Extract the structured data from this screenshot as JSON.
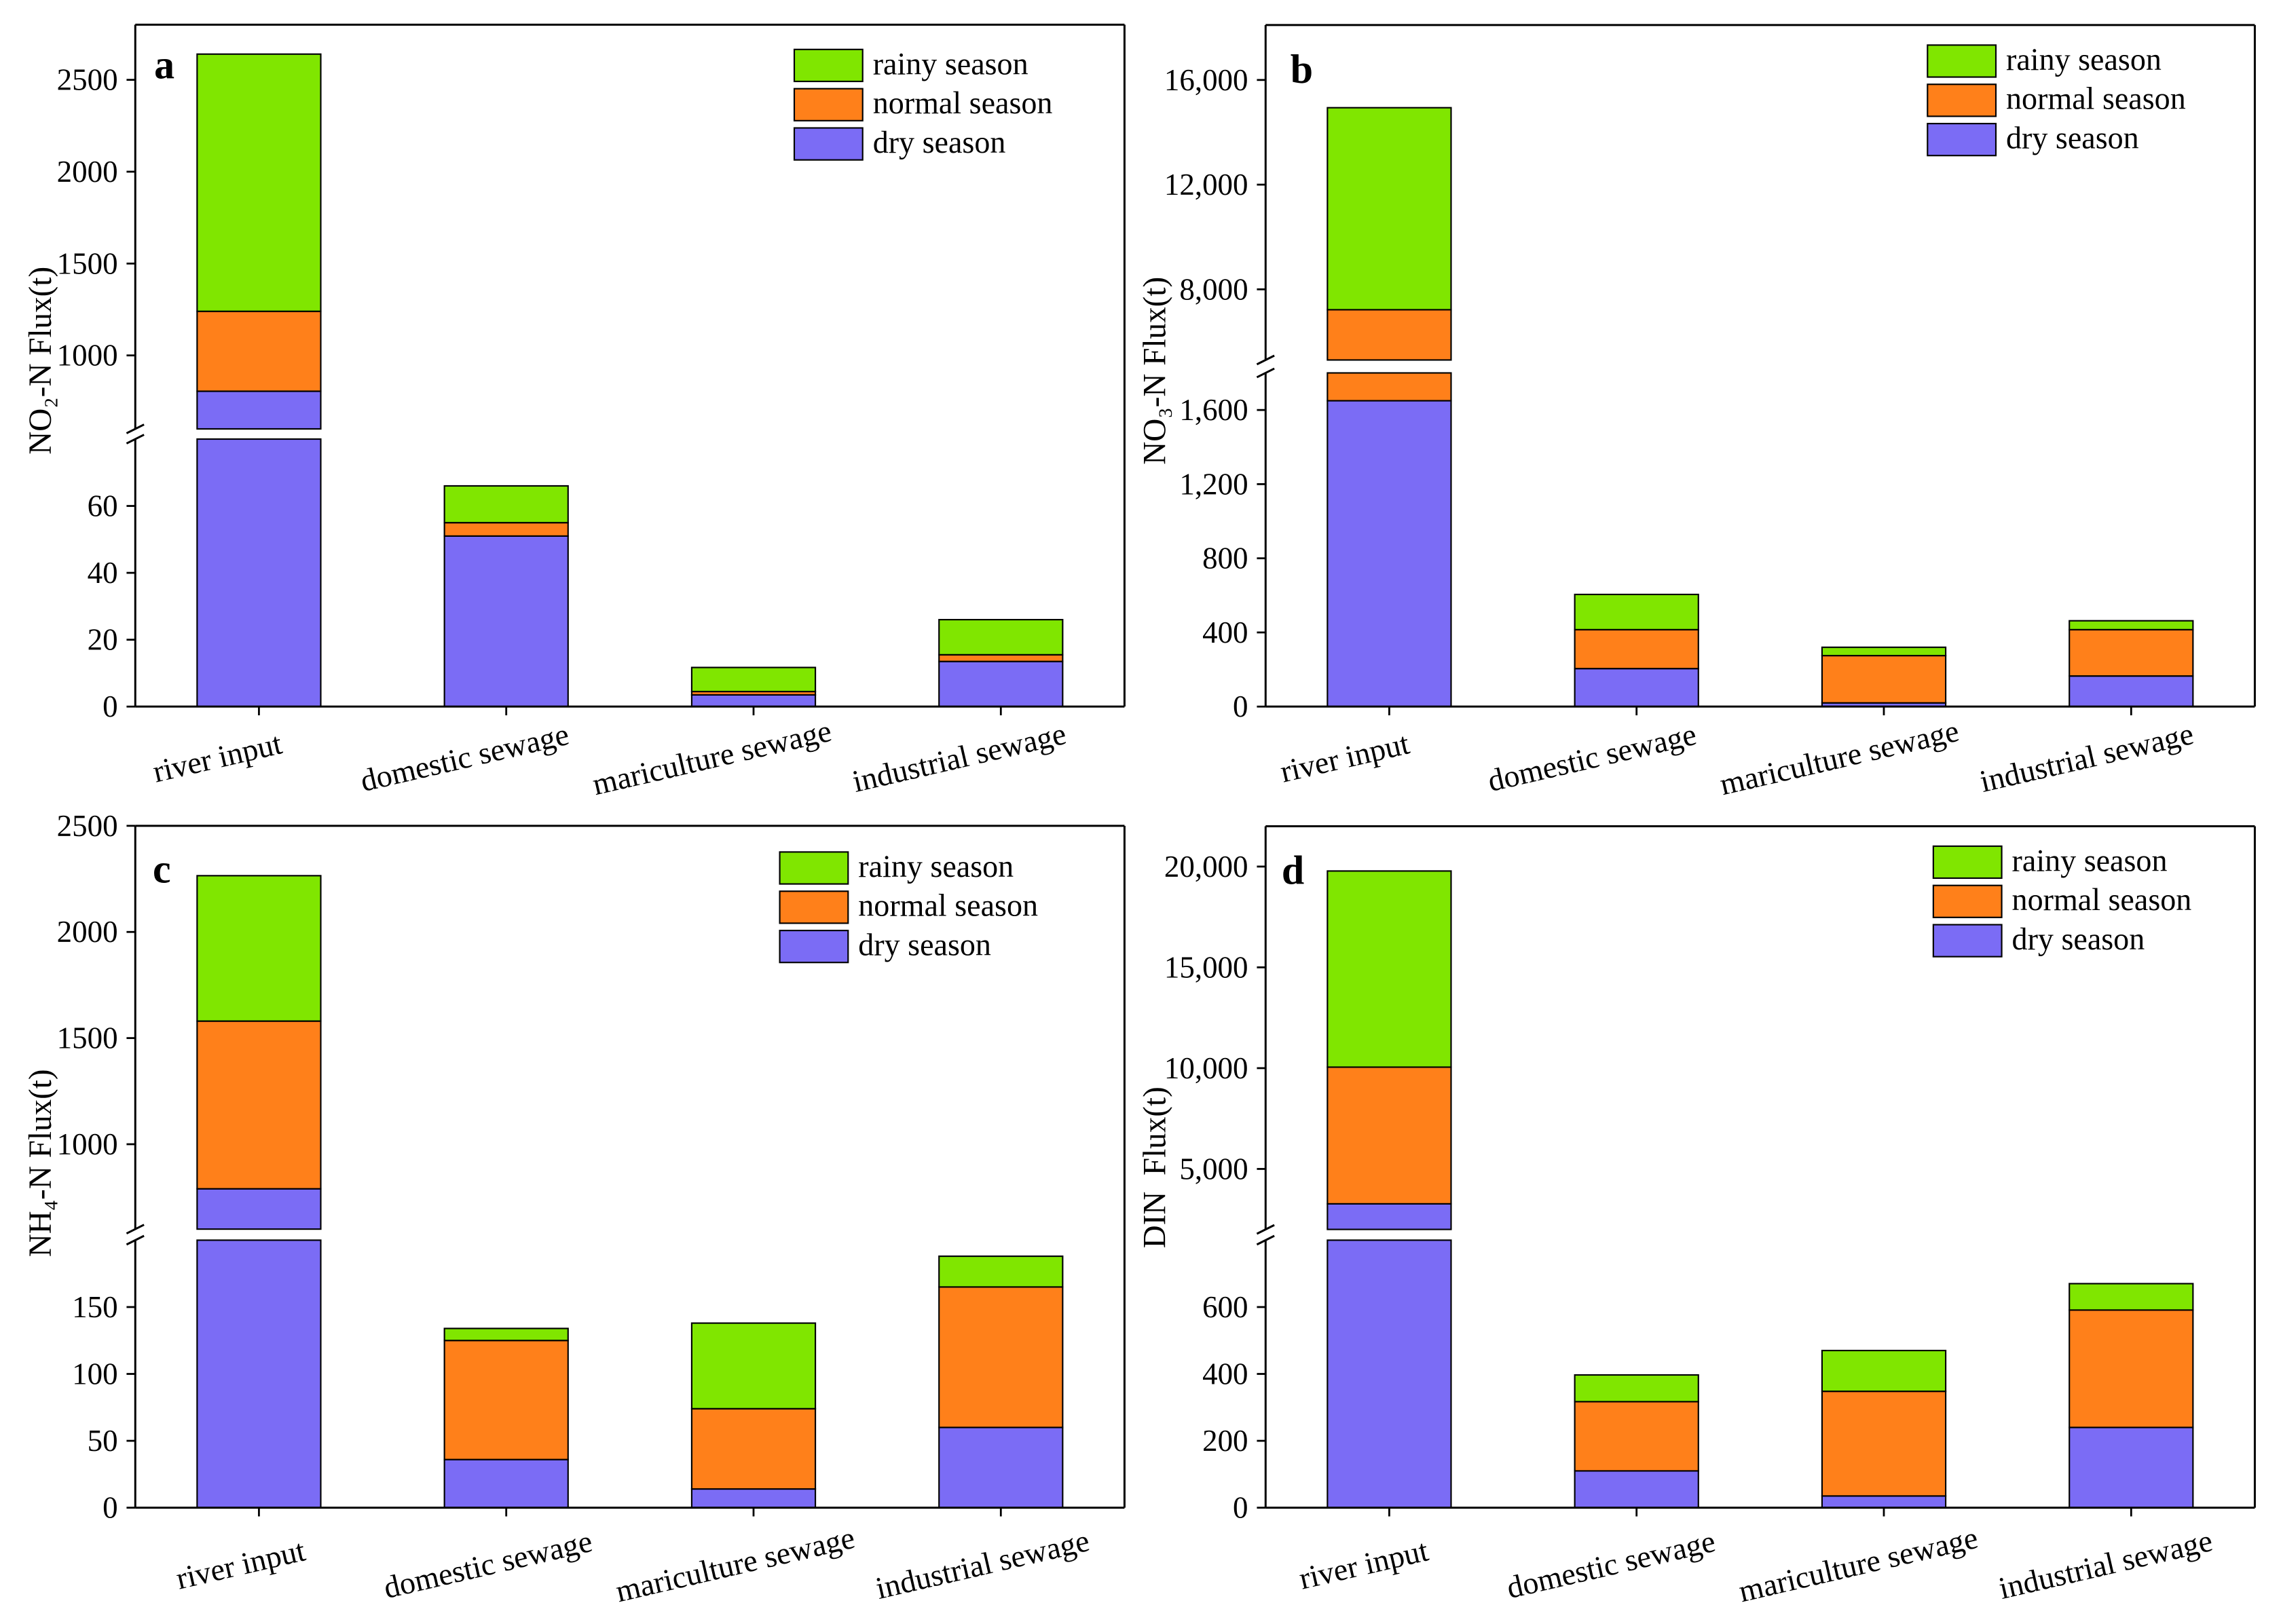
{
  "chart_data": [
    {
      "label": "a",
      "type": "bar",
      "stacked": true,
      "categories": [
        "river input",
        "domestic sewage",
        "mariculture sewage",
        "industrial sewage"
      ],
      "ylabel": "NO₂-N Flux(t)",
      "y_axis_break": true,
      "ylim_lower": [
        0,
        80
      ],
      "ylim_upper": [
        600,
        2800
      ],
      "yticks_lower": [
        "0",
        "20",
        "40",
        "60"
      ],
      "yticks_upper": [
        "1000",
        "1500",
        "2000",
        "2500"
      ],
      "legend_position": "top-right",
      "grid": false,
      "series": [
        {
          "name": "dry season",
          "color": "#7B6CF5",
          "values": [
            805,
            51,
            3.5,
            13.5
          ]
        },
        {
          "name": "normal season",
          "color": "#FF801A",
          "values": [
            435,
            4,
            1,
            2
          ]
        },
        {
          "name": "rainy season",
          "color": "#80E600",
          "values": [
            1400,
            11,
            7.2,
            10.5
          ]
        }
      ]
    },
    {
      "label": "b",
      "type": "bar",
      "stacked": true,
      "categories": [
        "river input",
        "domestic sewage",
        "mariculture sewage",
        "industrial sewage"
      ],
      "ylabel": "NO₃-N Flux(t)",
      "y_axis_break": true,
      "ylim_lower": [
        0,
        1800
      ],
      "ylim_upper": [
        5300,
        18100
      ],
      "yticks_lower": [
        "0",
        "400",
        "800",
        "1,200",
        "1,600"
      ],
      "yticks_upper": [
        "8,000",
        "12,000",
        "16,000"
      ],
      "legend_position": "top-right",
      "grid": false,
      "series": [
        {
          "name": "dry season",
          "color": "#7B6CF5",
          "values": [
            1650,
            205,
            20,
            165
          ]
        },
        {
          "name": "normal season",
          "color": "#FF801A",
          "values": [
            5570,
            210,
            255,
            250
          ]
        },
        {
          "name": "rainy season",
          "color": "#80E600",
          "values": [
            7720,
            190,
            45,
            48
          ]
        }
      ]
    },
    {
      "label": "c",
      "type": "bar",
      "stacked": true,
      "categories": [
        "river input",
        "domestic sewage",
        "mariculture sewage",
        "industrial sewage"
      ],
      "ylabel": "NH₄-N Flux(t)",
      "y_axis_break": true,
      "ylim_lower": [
        0,
        200
      ],
      "ylim_upper": [
        600,
        2500
      ],
      "yticks_lower": [
        "0",
        "50",
        "100",
        "150"
      ],
      "yticks_upper": [
        "1000",
        "1500",
        "2000",
        "2500"
      ],
      "legend_position": "top-right",
      "grid": false,
      "series": [
        {
          "name": "dry season",
          "color": "#7B6CF5",
          "values": [
            790,
            36,
            14,
            60
          ]
        },
        {
          "name": "normal season",
          "color": "#FF801A",
          "values": [
            790,
            89,
            60,
            105
          ]
        },
        {
          "name": "rainy season",
          "color": "#80E600",
          "values": [
            685,
            9,
            64,
            23
          ]
        }
      ]
    },
    {
      "label": "d",
      "type": "bar",
      "stacked": true,
      "categories": [
        "river input",
        "domestic sewage",
        "mariculture sewage",
        "industrial sewage"
      ],
      "ylabel": "DIN  Flux(t)",
      "y_axis_break": true,
      "ylim_lower": [
        0,
        800
      ],
      "ylim_upper": [
        2000,
        22000
      ],
      "yticks_lower": [
        "0",
        "200",
        "400",
        "600"
      ],
      "yticks_upper": [
        "5,000",
        "10,000",
        "15,000",
        "20,000"
      ],
      "legend_position": "top-right",
      "grid": false,
      "series": [
        {
          "name": "dry season",
          "color": "#7B6CF5",
          "values": [
            3270,
            110,
            35,
            240
          ]
        },
        {
          "name": "normal season",
          "color": "#FF801A",
          "values": [
            6780,
            207,
            313,
            351
          ]
        },
        {
          "name": "rainy season",
          "color": "#80E600",
          "values": [
            9730,
            80,
            122,
            79
          ]
        }
      ]
    }
  ]
}
